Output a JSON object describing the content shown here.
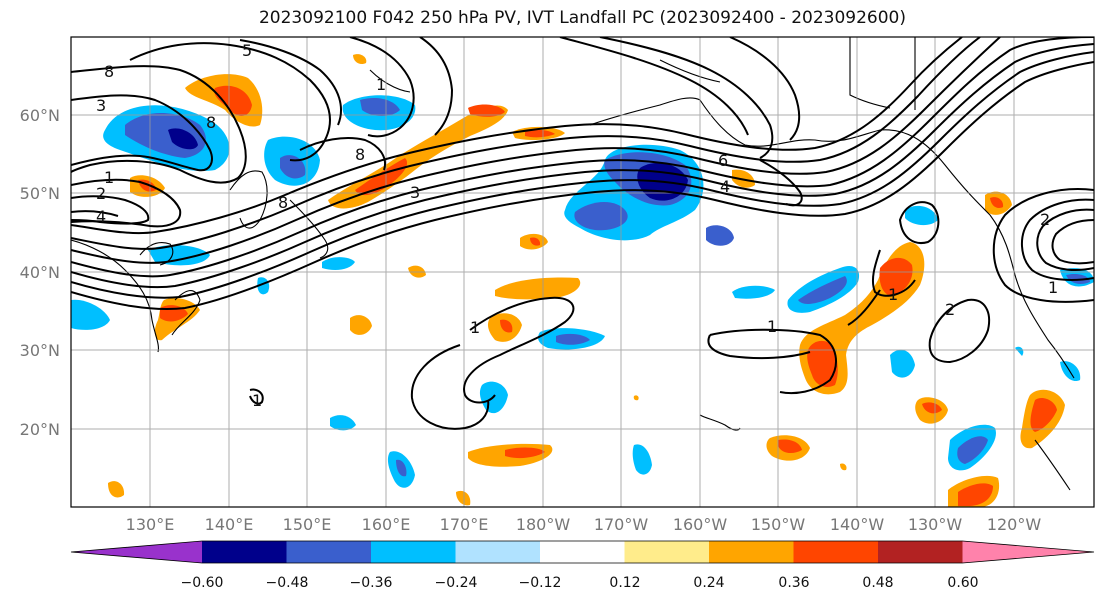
{
  "title": "2023092100 F042 250 hPa PV, IVT Landfall PC (2023092400 - 2023092600)",
  "lat_labels": [
    "60°N",
    "50°N",
    "40°N",
    "30°N",
    "20°N"
  ],
  "lon_labels": [
    "130°E",
    "140°E",
    "150°E",
    "160°E",
    "170°E",
    "180°W",
    "170°W",
    "160°W",
    "150°W",
    "140°W",
    "130°W",
    "120°W"
  ],
  "colorbar": {
    "colors": [
      "#9932cc",
      "#00008b",
      "#3a5fcd",
      "#00bfff",
      "#b0e2ff",
      "#ffffff",
      "#ffec8b",
      "#ffa500",
      "#ff4500",
      "#b22222",
      "#ff82ab"
    ],
    "tick_labels": [
      "−0.60",
      "−0.48",
      "−0.36",
      "−0.24",
      "−0.12",
      "0.12",
      "0.24",
      "0.36",
      "0.48",
      "0.60"
    ]
  },
  "contour_labels": [
    "8",
    "3",
    "1",
    "2",
    "4",
    "5",
    "8",
    "8",
    "3",
    "1",
    "8",
    "1",
    "1",
    "2",
    "1",
    "1",
    "2",
    "1",
    "6",
    "4"
  ]
}
